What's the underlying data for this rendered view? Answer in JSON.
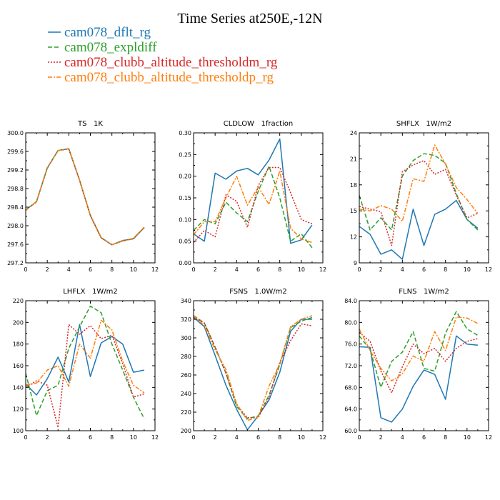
{
  "figure": {
    "title": "Time Series at250E,-12N",
    "legend": [
      {
        "name": "cam078_dflt_rg",
        "color": "#1f77b4",
        "dash": "solid"
      },
      {
        "name": "cam078_expldiff",
        "color": "#2ca02c",
        "dash": "dash"
      },
      {
        "name": "cam078_clubb_altitude_thresholdm_rg",
        "color": "#d62728",
        "dash": "dot"
      },
      {
        "name": "cam078_clubb_altitude_thresholdp_rg",
        "color": "#ff7f0e",
        "dash": "dashdot"
      }
    ]
  },
  "chart_data": [
    {
      "type": "line",
      "title": "TS   1K",
      "xlim": [
        0,
        12
      ],
      "ylim": [
        297.2,
        300.0
      ],
      "xticks": [
        0,
        2,
        4,
        6,
        8,
        10,
        12
      ],
      "yticks": [
        "297.2",
        "297.6",
        "298.0",
        "298.4",
        "298.8",
        "299.2",
        "299.6",
        "300.0"
      ],
      "x": [
        0,
        1,
        2,
        3,
        4,
        5,
        6,
        7,
        8,
        9,
        10,
        11
      ],
      "series": [
        {
          "name": "cam078_dflt_rg",
          "values": [
            298.34,
            298.52,
            299.24,
            299.62,
            299.66,
            298.98,
            298.22,
            297.74,
            297.59,
            297.68,
            297.72,
            297.96
          ]
        },
        {
          "name": "cam078_expldiff",
          "values": [
            298.33,
            298.52,
            299.25,
            299.62,
            299.66,
            298.98,
            298.22,
            297.74,
            297.59,
            297.67,
            297.72,
            297.96
          ]
        },
        {
          "name": "cam078_clubb_altitude_thresholdm_rg",
          "values": [
            298.34,
            298.51,
            299.25,
            299.62,
            299.65,
            298.98,
            298.22,
            297.74,
            297.59,
            297.68,
            297.72,
            297.96
          ]
        },
        {
          "name": "cam078_clubb_altitude_thresholdp_rg",
          "values": [
            298.33,
            298.52,
            299.25,
            299.62,
            299.66,
            298.98,
            298.23,
            297.75,
            297.59,
            297.67,
            297.73,
            297.97
          ]
        }
      ]
    },
    {
      "type": "line",
      "title": "CLDLOW   1fraction",
      "xlim": [
        0,
        12
      ],
      "ylim": [
        0.0,
        0.3
      ],
      "xticks": [
        0,
        2,
        4,
        6,
        8,
        10,
        12
      ],
      "yticks": [
        "0.00",
        "0.05",
        "0.10",
        "0.15",
        "0.20",
        "0.25",
        "0.30"
      ],
      "x": [
        0,
        1,
        2,
        3,
        4,
        5,
        6,
        7,
        8,
        9,
        10,
        11
      ],
      "series": [
        {
          "name": "cam078_dflt_rg",
          "values": [
            0.067,
            0.05,
            0.207,
            0.193,
            0.212,
            0.218,
            0.203,
            0.237,
            0.286,
            0.045,
            0.053,
            0.087
          ]
        },
        {
          "name": "cam078_expldiff",
          "values": [
            0.075,
            0.1,
            0.09,
            0.14,
            0.115,
            0.095,
            0.165,
            0.223,
            0.15,
            0.05,
            0.067,
            0.035
          ]
        },
        {
          "name": "cam078_clubb_altitude_thresholdm_rg",
          "values": [
            0.047,
            0.075,
            0.06,
            0.157,
            0.142,
            0.082,
            0.178,
            0.22,
            0.22,
            0.162,
            0.1,
            0.09
          ]
        },
        {
          "name": "cam078_clubb_altitude_thresholdp_rg",
          "values": [
            0.065,
            0.095,
            0.095,
            0.15,
            0.2,
            0.133,
            0.175,
            0.135,
            0.212,
            0.08,
            0.055,
            0.047
          ]
        }
      ]
    },
    {
      "type": "line",
      "title": "SHFLX   1W/m2",
      "xlim": [
        0,
        12
      ],
      "ylim": [
        9,
        24
      ],
      "xticks": [
        0,
        2,
        4,
        6,
        8,
        10,
        12
      ],
      "yticks": [
        "9",
        "12",
        "15",
        "18",
        "21",
        "24"
      ],
      "x": [
        0,
        1,
        2,
        3,
        4,
        5,
        6,
        7,
        8,
        9,
        10,
        11
      ],
      "series": [
        {
          "name": "cam078_dflt_rg",
          "values": [
            13.2,
            12.3,
            10.0,
            10.5,
            9.4,
            15.2,
            11.0,
            14.6,
            15.2,
            16.2,
            14.0,
            13.0
          ]
        },
        {
          "name": "cam078_expldiff",
          "values": [
            16.8,
            12.8,
            14.2,
            12.8,
            19.0,
            20.8,
            21.6,
            21.4,
            20.5,
            17.0,
            14.0,
            12.8
          ]
        },
        {
          "name": "cam078_clubb_altitude_thresholdm_rg",
          "values": [
            15.5,
            15.2,
            14.9,
            11.0,
            19.5,
            20.3,
            20.8,
            19.2,
            19.8,
            16.8,
            14.2,
            14.7
          ]
        },
        {
          "name": "cam078_clubb_altitude_thresholdp_rg",
          "values": [
            15.2,
            15.0,
            15.6,
            15.2,
            13.8,
            18.7,
            18.4,
            22.6,
            20.4,
            17.7,
            16.3,
            14.7
          ]
        }
      ]
    },
    {
      "type": "line",
      "title": "LHFLX   1W/m2",
      "xlim": [
        0,
        12
      ],
      "ylim": [
        100,
        220
      ],
      "xticks": [
        0,
        2,
        4,
        6,
        8,
        10,
        12
      ],
      "yticks": [
        "100",
        "120",
        "140",
        "160",
        "180",
        "200",
        "220"
      ],
      "x": [
        0,
        1,
        2,
        3,
        4,
        5,
        6,
        7,
        8,
        9,
        10,
        11
      ],
      "series": [
        {
          "name": "cam078_dflt_rg",
          "values": [
            143,
            133,
            148,
            168,
            145,
            198,
            150,
            181,
            187,
            180,
            154,
            156
          ]
        },
        {
          "name": "cam078_expldiff",
          "values": [
            153,
            114,
            137,
            142,
            176,
            196,
            215,
            209,
            180,
            156,
            131,
            111
          ]
        },
        {
          "name": "cam078_clubb_altitude_thresholdm_rg",
          "values": [
            140,
            146,
            142,
            103,
            198,
            189,
            197,
            185,
            188,
            162,
            131,
            134
          ]
        },
        {
          "name": "cam078_clubb_altitude_thresholdp_rg",
          "values": [
            142,
            144,
            156,
            160,
            141,
            180,
            167,
            202,
            193,
            164,
            142,
            135
          ]
        }
      ]
    },
    {
      "type": "line",
      "title": "FSNS   1.0W/m2",
      "xlim": [
        0,
        12
      ],
      "ylim": [
        200,
        340
      ],
      "xticks": [
        0,
        2,
        4,
        6,
        8,
        10,
        12
      ],
      "yticks": [
        "200",
        "220",
        "240",
        "260",
        "280",
        "300",
        "320",
        "340"
      ],
      "x": [
        0,
        1,
        2,
        3,
        4,
        5,
        6,
        7,
        8,
        9,
        10,
        11
      ],
      "series": [
        {
          "name": "cam078_dflt_rg",
          "values": [
            322,
            312,
            281,
            249,
            223,
            201,
            216,
            233,
            263,
            307,
            320,
            320
          ]
        },
        {
          "name": "cam078_expldiff",
          "values": [
            324,
            316,
            290,
            262,
            226,
            213,
            216,
            238,
            271,
            311,
            318,
            322
          ]
        },
        {
          "name": "cam078_clubb_altitude_thresholdm_rg",
          "values": [
            322,
            316,
            290,
            262,
            228,
            214,
            214,
            236,
            274,
            297,
            315,
            313
          ]
        },
        {
          "name": "cam078_clubb_altitude_thresholdp_rg",
          "values": [
            324,
            313,
            287,
            266,
            229,
            211,
            215,
            248,
            272,
            312,
            320,
            324
          ]
        }
      ]
    },
    {
      "type": "line",
      "title": "FLNS   1W/m2",
      "xlim": [
        0,
        12
      ],
      "ylim": [
        60.0,
        84.0
      ],
      "xticks": [
        0,
        2,
        4,
        6,
        8,
        10,
        12
      ],
      "yticks": [
        "60.0",
        "64.0",
        "68.0",
        "72.0",
        "76.0",
        "80.0",
        "84.0"
      ],
      "x": [
        0,
        1,
        2,
        3,
        4,
        5,
        6,
        7,
        8,
        9,
        10,
        11
      ],
      "series": [
        {
          "name": "cam078_dflt_rg",
          "values": [
            75.5,
            75.4,
            62.4,
            61.6,
            64.0,
            68.2,
            71.2,
            70.4,
            65.8,
            77.5,
            76.0,
            75.8
          ]
        },
        {
          "name": "cam078_expldiff",
          "values": [
            77.5,
            75.0,
            68.0,
            72.8,
            74.5,
            78.3,
            71.5,
            71.0,
            78.0,
            82.0,
            78.8,
            77.6
          ]
        },
        {
          "name": "cam078_clubb_altitude_thresholdm_rg",
          "values": [
            78.2,
            76.5,
            71.0,
            67.0,
            71.8,
            76.0,
            74.2,
            75.2,
            72.8,
            75.2,
            76.5,
            77.0
          ]
        },
        {
          "name": "cam078_clubb_altitude_thresholdp_rg",
          "values": [
            78.8,
            74.8,
            71.5,
            69.2,
            70.5,
            73.8,
            72.8,
            78.3,
            74.8,
            81.0,
            80.8,
            79.8
          ]
        }
      ]
    }
  ]
}
